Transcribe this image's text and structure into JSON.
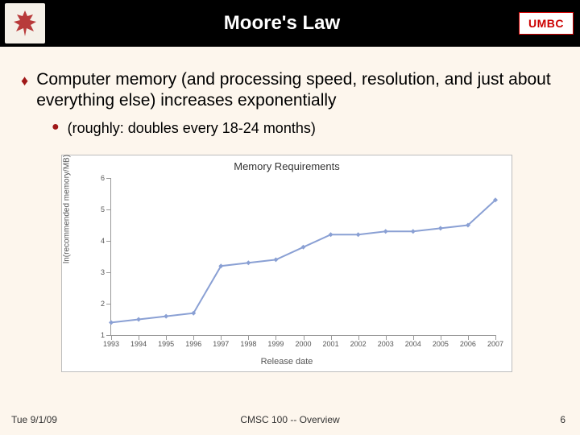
{
  "header": {
    "title": "Moore's Law",
    "umbc_label": "UMBC",
    "umbc_color": "#cc0000",
    "leaf_color": "#b83a3a",
    "bg_color": "#000000",
    "title_color": "#ffffff"
  },
  "bullets": {
    "main": "Computer memory (and processing speed, resolution, and just about everything else) increases exponentially",
    "sub": "(roughly: doubles every 18-24 months)",
    "marker_main": "♦",
    "marker_sub": "●",
    "marker_color": "#a01818"
  },
  "chart": {
    "type": "line",
    "title": "Memory Requirements",
    "xlabel": "Release date",
    "ylabel": "ln(recommended memory/MB)",
    "xlim": [
      1993,
      2007
    ],
    "ylim": [
      1,
      6
    ],
    "ytick_step": 1,
    "xticks": [
      1993,
      1994,
      1995,
      1996,
      1997,
      1998,
      1999,
      2000,
      2001,
      2002,
      2003,
      2004,
      2005,
      2006,
      2007
    ],
    "series": {
      "x": [
        1993,
        1994,
        1995,
        1996,
        1997,
        1998,
        1999,
        2000,
        2001,
        2002,
        2003,
        2004,
        2005,
        2006,
        2007
      ],
      "y": [
        1.4,
        1.5,
        1.6,
        1.7,
        3.2,
        3.3,
        3.4,
        3.8,
        4.2,
        4.2,
        4.3,
        4.3,
        4.4,
        4.5,
        5.3
      ],
      "line_color": "#8aa0d4",
      "line_width": 2,
      "marker": "diamond",
      "marker_size": 6,
      "marker_color": "#8aa0d4"
    },
    "background_color": "#ffffff",
    "axis_color": "#9a9a9a",
    "tick_label_color": "#555555",
    "title_fontsize": 13,
    "label_fontsize": 11,
    "tick_fontsize": 9
  },
  "footer": {
    "date": "Tue 9/1/09",
    "course": "CMSC 100 -- Overview",
    "page": "6"
  },
  "slide": {
    "bg_color": "#fdf6ed"
  }
}
